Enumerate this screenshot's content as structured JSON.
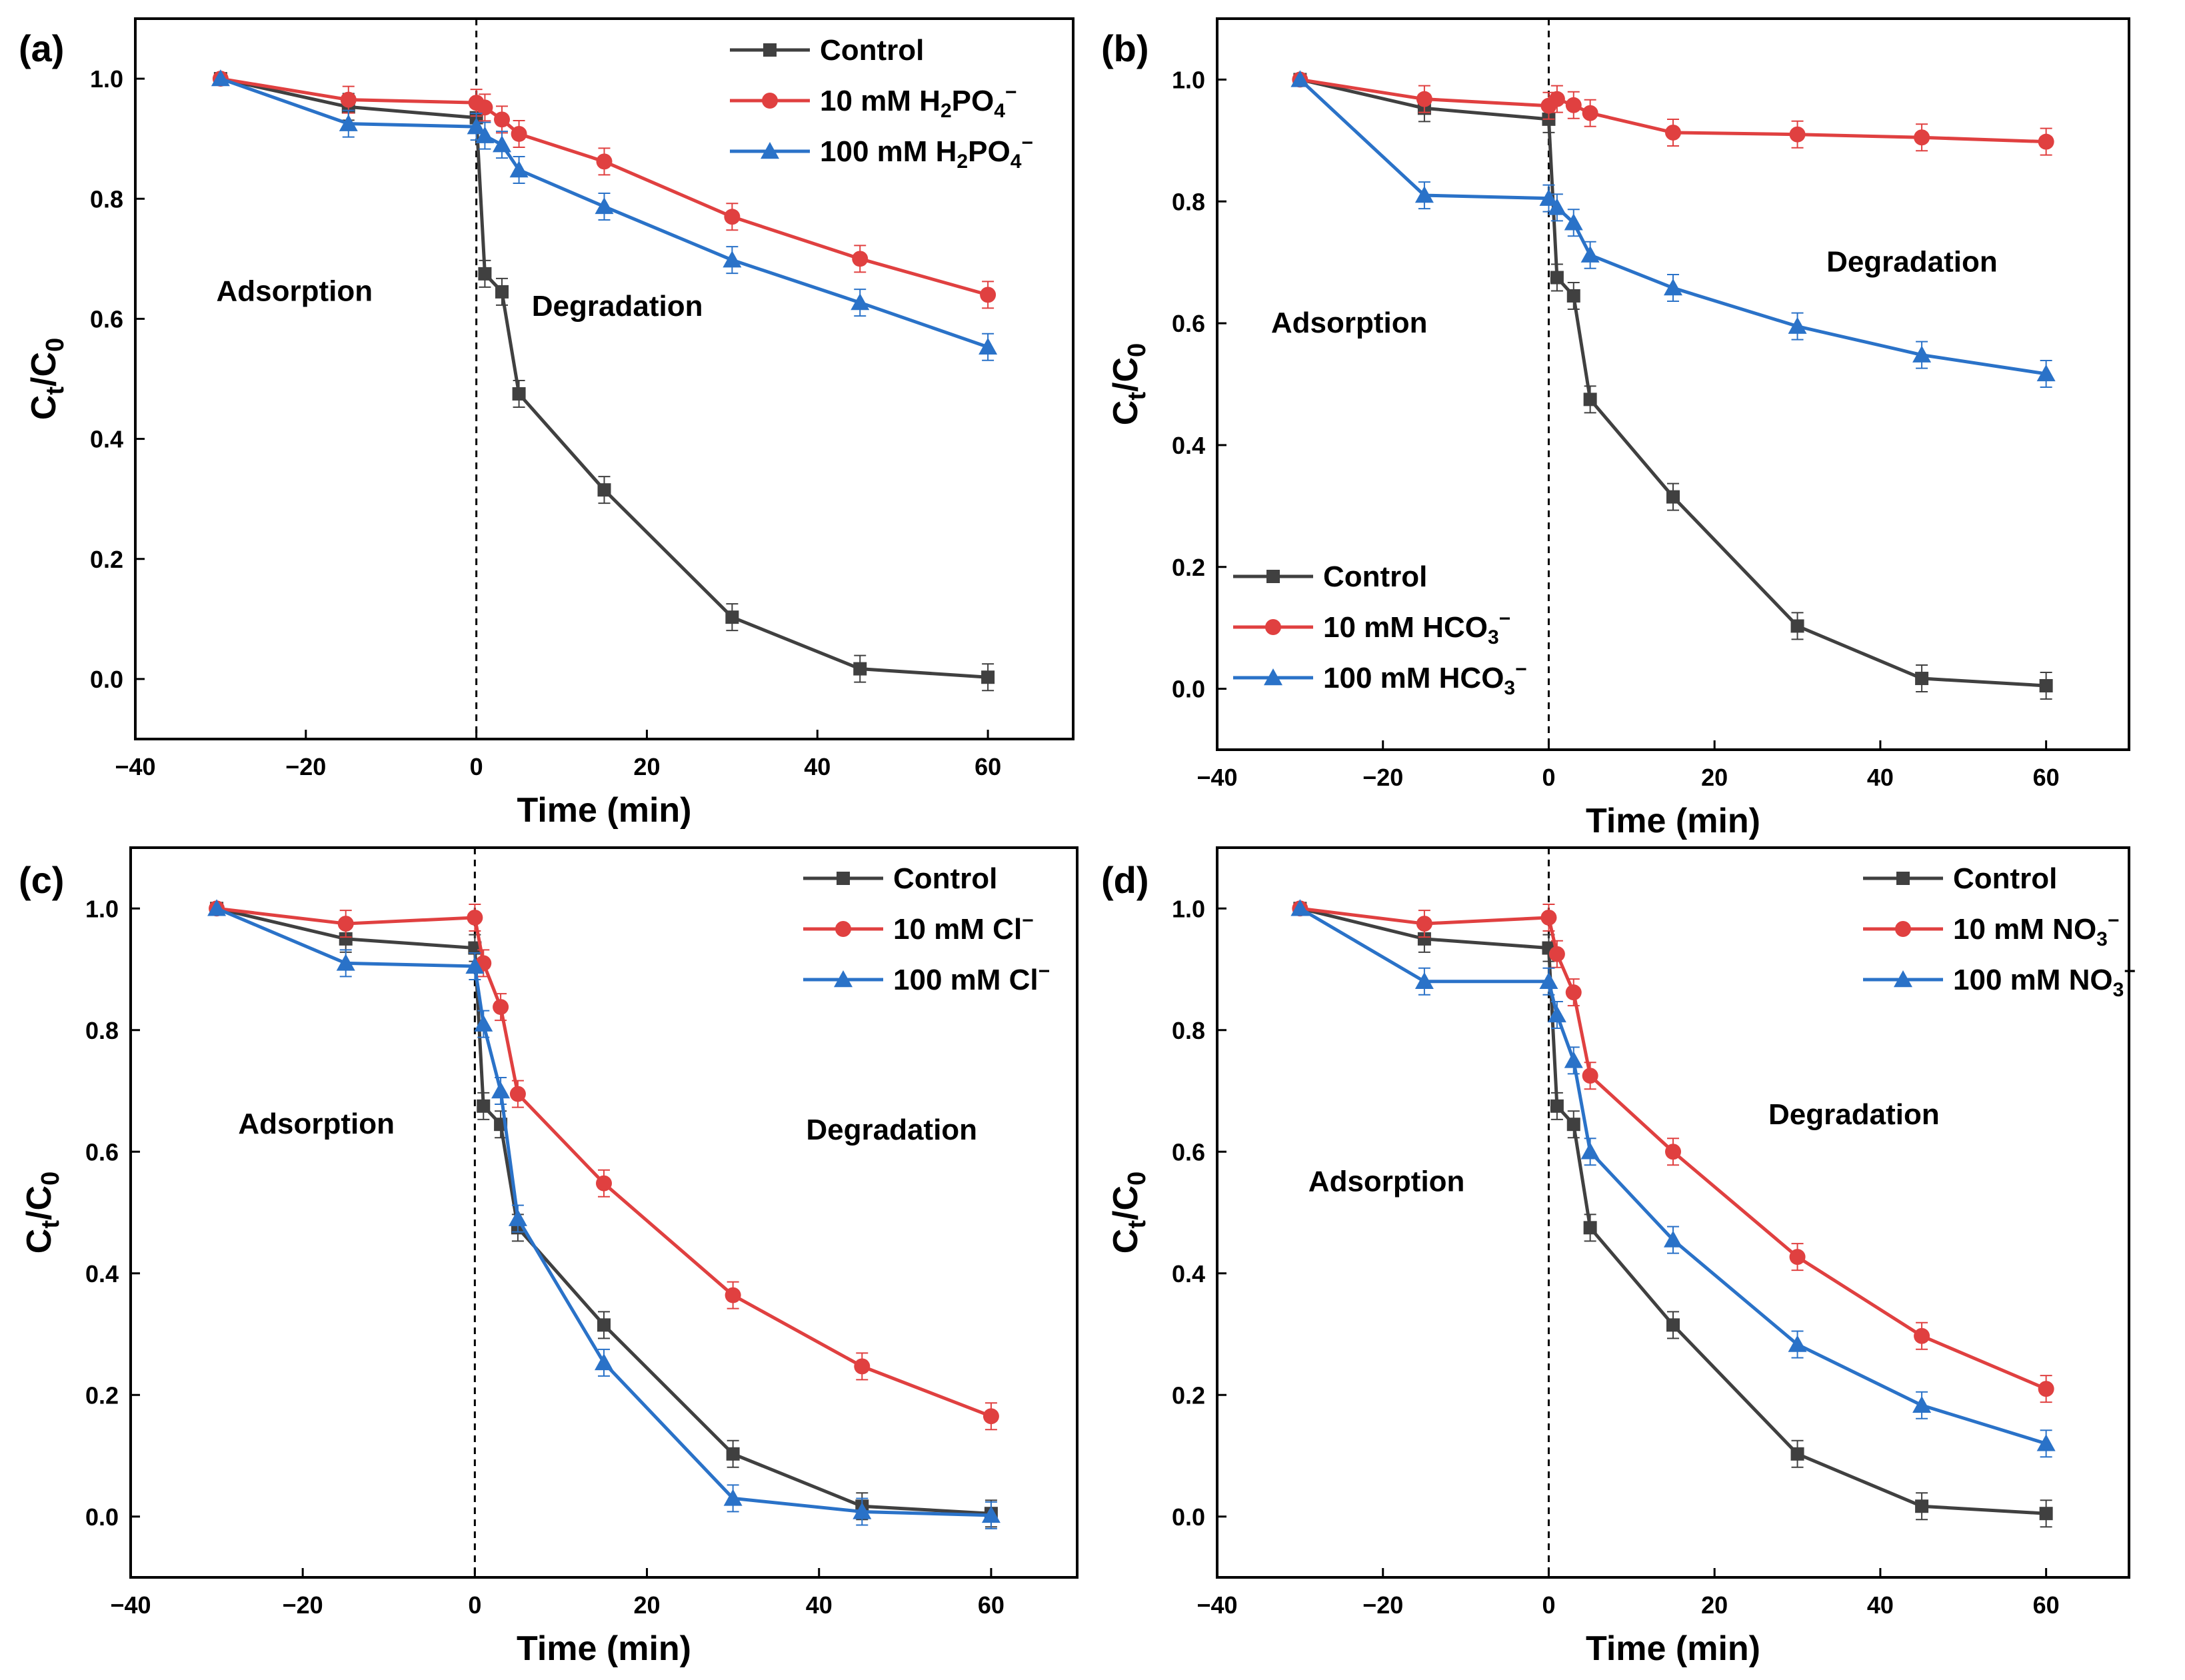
{
  "colors": {
    "control": "#404040",
    "low": "#e04040",
    "high": "#2a72c8"
  },
  "chart_data": [
    {
      "panel": "(a)",
      "type": "line",
      "xlabel": "Time (min)",
      "ylabel": "Ct/C0",
      "xlim": [
        -40,
        70
      ],
      "ylim": [
        -0.1,
        1.1
      ],
      "xticks": [
        -40,
        -20,
        0,
        20,
        40,
        60
      ],
      "yticks": [
        0.0,
        0.2,
        0.4,
        0.6,
        0.8,
        1.0
      ],
      "annotations": [
        {
          "text": "Adsorption",
          "x": -30.5,
          "y": 0.63
        },
        {
          "text": "Degradation",
          "x": 6.5,
          "y": 0.605
        }
      ],
      "legend_position": "top-right",
      "x": [
        -30,
        -15,
        0,
        1,
        3,
        5,
        15,
        30,
        45,
        60
      ],
      "series": [
        {
          "name": "Control",
          "label_main": "Control",
          "label_sub": "",
          "label_sup": "",
          "label_tail": "",
          "marker": "square",
          "color_key": "control",
          "values": [
            1.0,
            0.953,
            0.935,
            0.675,
            0.645,
            0.475,
            0.315,
            0.103,
            0.017,
            0.003
          ]
        },
        {
          "name": "10 mM H2PO4-",
          "label_main": "10 mM H",
          "label_sub": "2",
          "label_sup": "",
          "label_tail": "PO",
          "label_sub2": "4",
          "label_sup2": "−",
          "marker": "circle",
          "color_key": "low",
          "values": [
            1.0,
            0.965,
            0.96,
            0.952,
            0.932,
            0.908,
            0.862,
            0.77,
            0.7,
            0.64
          ]
        },
        {
          "name": "100 mM H2PO4-",
          "label_main": "100 mM H",
          "label_sub": "2",
          "label_sup": "",
          "label_tail": "PO",
          "label_sub2": "4",
          "label_sup2": "−",
          "marker": "triangle",
          "color_key": "high",
          "values": [
            1.0,
            0.925,
            0.92,
            0.905,
            0.89,
            0.848,
            0.787,
            0.698,
            0.627,
            0.553
          ]
        }
      ]
    },
    {
      "panel": "(b)",
      "type": "line",
      "xlabel": "Time (min)",
      "ylabel": "Ct/C0",
      "xlim": [
        -40,
        70
      ],
      "ylim": [
        -0.1,
        1.1
      ],
      "xticks": [
        -40,
        -20,
        0,
        20,
        40,
        60
      ],
      "yticks": [
        0.0,
        0.2,
        0.4,
        0.6,
        0.8,
        1.0
      ],
      "annotations": [
        {
          "text": "Adsorption",
          "x": -33.5,
          "y": 0.585
        },
        {
          "text": "Degradation",
          "x": 33.5,
          "y": 0.685
        }
      ],
      "legend_position": "bottom-left",
      "x": [
        -30,
        -15,
        0,
        1,
        3,
        5,
        15,
        30,
        45,
        60
      ],
      "series": [
        {
          "name": "Control",
          "label_main": "Control",
          "label_sub": "",
          "label_sup": "",
          "label_tail": "",
          "marker": "square",
          "color_key": "control",
          "values": [
            1.0,
            0.953,
            0.935,
            0.675,
            0.645,
            0.475,
            0.315,
            0.103,
            0.017,
            0.005
          ]
        },
        {
          "name": "10 mM HCO3-",
          "label_main": "10 mM HCO",
          "label_sub": "3",
          "label_sup": "−",
          "label_tail": "",
          "marker": "circle",
          "color_key": "low",
          "values": [
            1.0,
            0.968,
            0.957,
            0.968,
            0.958,
            0.945,
            0.913,
            0.91,
            0.905,
            0.898
          ]
        },
        {
          "name": "100 mM HCO3-",
          "label_main": "100 mM HCO",
          "label_sub": "3",
          "label_sup": "−",
          "label_tail": "",
          "marker": "triangle",
          "color_key": "high",
          "values": [
            1.0,
            0.81,
            0.805,
            0.79,
            0.765,
            0.712,
            0.658,
            0.595,
            0.548,
            0.517
          ]
        }
      ]
    },
    {
      "panel": "(c)",
      "type": "line",
      "xlabel": "Time (min)",
      "ylabel": "Ct/C0",
      "xlim": [
        -40,
        70
      ],
      "ylim": [
        -0.1,
        1.1
      ],
      "xticks": [
        -40,
        -20,
        0,
        20,
        40,
        60
      ],
      "yticks": [
        0.0,
        0.2,
        0.4,
        0.6,
        0.8,
        1.0
      ],
      "annotations": [
        {
          "text": "Adsorption",
          "x": -27.5,
          "y": 0.63
        },
        {
          "text": "Degradation",
          "x": 38.5,
          "y": 0.62
        }
      ],
      "legend_position": "top-right",
      "x": [
        -30,
        -15,
        0,
        1,
        3,
        5,
        15,
        30,
        45,
        60
      ],
      "series": [
        {
          "name": "Control",
          "label_main": "Control",
          "label_sub": "",
          "label_sup": "",
          "label_tail": "",
          "marker": "square",
          "color_key": "control",
          "values": [
            1.0,
            0.95,
            0.935,
            0.675,
            0.645,
            0.475,
            0.315,
            0.103,
            0.017,
            0.005
          ]
        },
        {
          "name": "10 mM Cl-",
          "label_main": "10 mM Cl",
          "label_sub": "",
          "label_sup": "−",
          "label_tail": "",
          "marker": "circle",
          "color_key": "low",
          "values": [
            1.0,
            0.975,
            0.985,
            0.91,
            0.838,
            0.695,
            0.548,
            0.364,
            0.247,
            0.165
          ]
        },
        {
          "name": "100 mM Cl-",
          "label_main": "100 mM Cl",
          "label_sub": "",
          "label_sup": "−",
          "label_tail": "",
          "marker": "triangle",
          "color_key": "high",
          "values": [
            1.0,
            0.91,
            0.905,
            0.81,
            0.7,
            0.49,
            0.253,
            0.03,
            0.008,
            0.002
          ]
        }
      ]
    },
    {
      "panel": "(d)",
      "type": "line",
      "xlabel": "Time (min)",
      "ylabel": "Ct/C0",
      "xlim": [
        -40,
        70
      ],
      "ylim": [
        -0.1,
        1.1
      ],
      "xticks": [
        -40,
        -20,
        0,
        20,
        40,
        60
      ],
      "yticks": [
        0.0,
        0.2,
        0.4,
        0.6,
        0.8,
        1.0
      ],
      "annotations": [
        {
          "text": "Adsorption",
          "x": -29,
          "y": 0.535
        },
        {
          "text": "Degradation",
          "x": 26.5,
          "y": 0.645
        }
      ],
      "legend_position": "top-right",
      "x": [
        -30,
        -15,
        0,
        1,
        3,
        5,
        15,
        30,
        45,
        60
      ],
      "series": [
        {
          "name": "Control",
          "label_main": "Control",
          "label_sub": "",
          "label_sup": "",
          "label_tail": "",
          "marker": "square",
          "color_key": "control",
          "values": [
            1.0,
            0.95,
            0.935,
            0.675,
            0.645,
            0.475,
            0.315,
            0.103,
            0.017,
            0.005
          ]
        },
        {
          "name": "10 mM NO3-",
          "label_main": "10 mM NO",
          "label_sub": "3",
          "label_sup": "−",
          "label_tail": "",
          "marker": "circle",
          "color_key": "low",
          "values": [
            1.0,
            0.975,
            0.985,
            0.925,
            0.862,
            0.725,
            0.6,
            0.427,
            0.297,
            0.21
          ]
        },
        {
          "name": "100 mM NO3-",
          "label_main": "100 mM NO",
          "label_sub": "3",
          "label_sup": "−",
          "label_tail": "",
          "marker": "triangle",
          "color_key": "high",
          "values": [
            1.0,
            0.88,
            0.88,
            0.825,
            0.75,
            0.6,
            0.455,
            0.283,
            0.183,
            0.12
          ]
        }
      ]
    }
  ]
}
